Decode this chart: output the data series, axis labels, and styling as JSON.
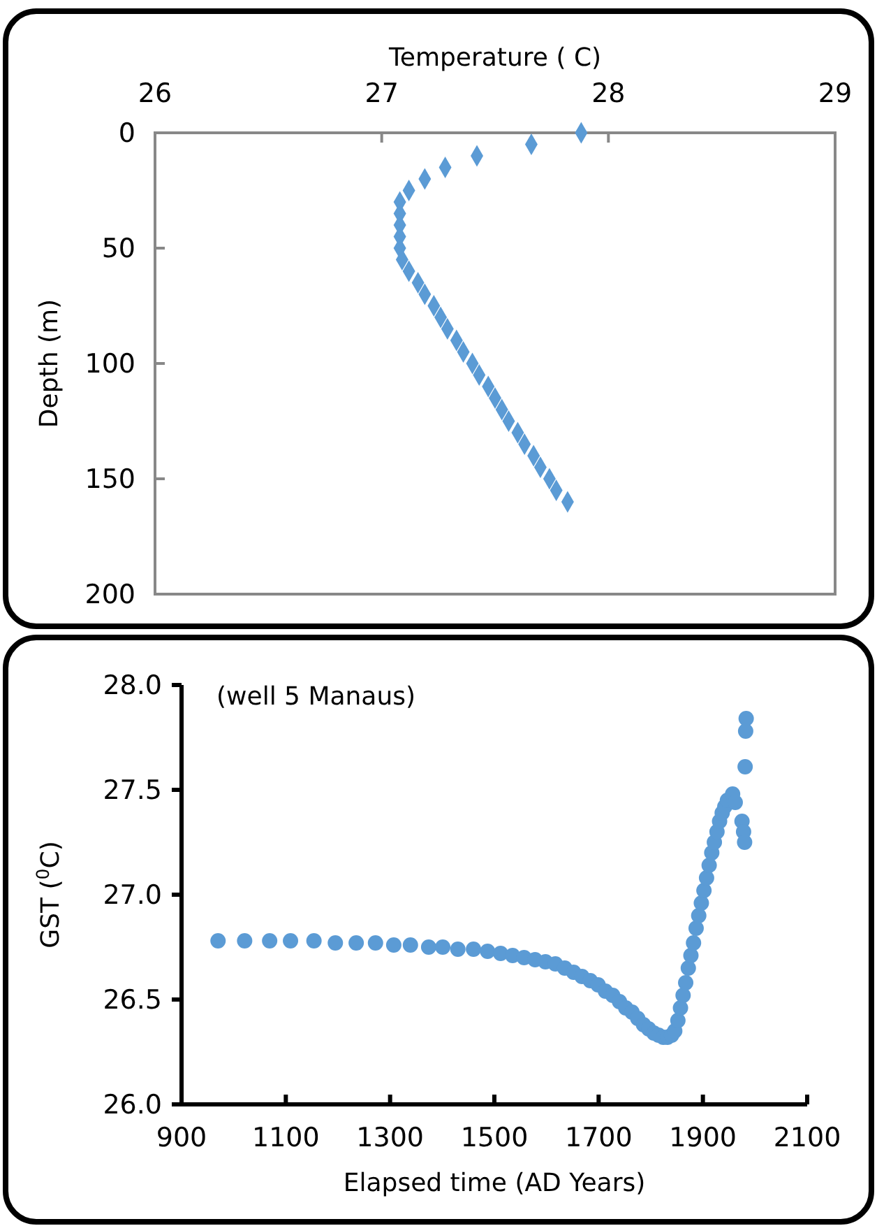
{
  "chart_data": [
    {
      "type": "scatter",
      "xlabel": "Temperature  ( C)",
      "ylabel": "Depth (m)",
      "xlim": [
        26,
        29
      ],
      "xticks": [
        26,
        27,
        28,
        29
      ],
      "ylim": [
        200,
        0
      ],
      "yticks": [
        0,
        50,
        100,
        150,
        200
      ],
      "marker": "diamond",
      "grid": false,
      "series": [
        {
          "color": "#5b9bd5",
          "x": [
            27.88,
            27.66,
            27.42,
            27.28,
            27.19,
            27.12,
            27.08,
            27.08,
            27.08,
            27.08,
            27.08,
            27.09,
            27.12,
            27.16,
            27.19,
            27.23,
            27.26,
            27.29,
            27.33,
            27.36,
            27.4,
            27.43,
            27.47,
            27.5,
            27.53,
            27.56,
            27.6,
            27.63,
            27.67,
            27.7,
            27.74,
            27.77,
            27.82
          ],
          "values": [
            0,
            5,
            10,
            15,
            20,
            25,
            30,
            35,
            40,
            45,
            50,
            55,
            60,
            65,
            70,
            75,
            80,
            85,
            90,
            95,
            100,
            105,
            110,
            115,
            120,
            125,
            130,
            135,
            140,
            145,
            150,
            155,
            160
          ]
        }
      ]
    },
    {
      "type": "scatter",
      "xlabel": "Elapsed time (AD Years)",
      "ylabel": "GST ($^{0}$C)",
      "annotations": [
        "(well 5 Manaus)"
      ],
      "xlim": [
        900,
        2100
      ],
      "xticks": [
        900,
        1100,
        1300,
        1500,
        1700,
        1900,
        2100
      ],
      "ylim": [
        26,
        28
      ],
      "yticks": [
        {
          "value": 26,
          "label": "26.0"
        },
        27.5,
        {
          "value": 27,
          "label": "27.0"
        },
        26.5,
        {
          "value": 28,
          "label": "28.0"
        }
      ],
      "marker": "circle",
      "grid": false,
      "series": [
        {
          "color": "#5b9bd5",
          "x": [
            970,
            1021,
            1069,
            1109,
            1154,
            1195,
            1235,
            1272,
            1307,
            1339,
            1374,
            1401,
            1430,
            1460,
            1487,
            1512,
            1535,
            1557,
            1578,
            1598,
            1617,
            1635,
            1652,
            1668,
            1684,
            1699,
            1713,
            1727,
            1740,
            1752,
            1764,
            1775,
            1786,
            1796,
            1806,
            1815,
            1824,
            1832,
            1840,
            1846,
            1852,
            1857,
            1862,
            1867,
            1872,
            1877,
            1882,
            1887,
            1892,
            1897,
            1902,
            1907,
            1912,
            1917,
            1922,
            1927,
            1932,
            1937,
            1942,
            1947,
            1957,
            1962,
            1975,
            1978,
            1980,
            1981,
            1982,
            1983
          ],
          "values": [
            26.78,
            26.78,
            26.78,
            26.78,
            26.78,
            26.77,
            26.77,
            26.77,
            26.76,
            26.76,
            26.75,
            26.75,
            26.74,
            26.74,
            26.73,
            26.72,
            26.71,
            26.7,
            26.69,
            26.68,
            26.67,
            26.65,
            26.63,
            26.61,
            26.59,
            26.57,
            26.54,
            26.52,
            26.49,
            26.46,
            26.44,
            26.41,
            26.38,
            26.36,
            26.34,
            26.33,
            26.32,
            26.32,
            26.33,
            26.35,
            26.4,
            26.46,
            26.52,
            26.58,
            26.65,
            26.71,
            26.77,
            26.84,
            26.9,
            26.96,
            27.02,
            27.08,
            27.14,
            27.2,
            27.25,
            27.3,
            27.35,
            27.39,
            27.42,
            27.45,
            27.48,
            27.44,
            27.35,
            27.3,
            27.25,
            27.61,
            27.78,
            27.84
          ]
        }
      ]
    }
  ]
}
